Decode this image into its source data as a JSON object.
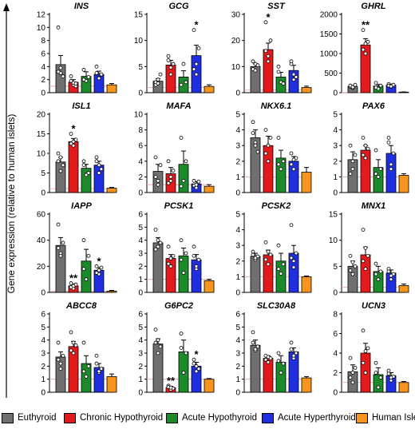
{
  "y_axis_label": "Gene expression (relative to human islets)",
  "groups": [
    {
      "name": "Euthyroid",
      "color": "#6f6f6f"
    },
    {
      "name": "Chronic Hypothyroid",
      "color": "#e31a1c"
    },
    {
      "name": "Acute Hypothyroid",
      "color": "#1a8a2a"
    },
    {
      "name": "Acute Hyperthyroid",
      "color": "#1f2fe0"
    },
    {
      "name": "Human Islets",
      "color": "#f7941d"
    }
  ],
  "chart_data": [
    {
      "type": "bar",
      "title": "INS",
      "ylim": [
        0,
        12
      ],
      "yticks": [
        0,
        2,
        4,
        6,
        8,
        10,
        12
      ],
      "categories": [
        "Euthyroid",
        "Chronic Hypothyroid",
        "Acute Hypothyroid",
        "Acute Hyperthyroid",
        "Human Islets"
      ],
      "values": [
        4.3,
        1.6,
        2.5,
        2.8,
        1.2
      ],
      "errors": [
        1.4,
        0.4,
        0.7,
        0.5,
        0.2
      ],
      "points": [
        [
          10,
          3,
          2.5,
          3.2,
          3.8
        ],
        [
          2.5,
          1.2,
          1.0,
          1.8,
          1.5,
          1.4
        ],
        [
          3.5,
          1.8,
          2.4,
          2.0
        ],
        [
          4,
          2.3,
          2.8,
          3.0,
          2.2
        ]
      ],
      "significance": [
        "",
        "",
        "",
        "",
        ""
      ]
    },
    {
      "type": "bar",
      "title": "GCG",
      "ylim": [
        0,
        15
      ],
      "yticks": [
        0,
        5,
        10,
        15
      ],
      "categories": [
        "Euthyroid",
        "Chronic Hypothyroid",
        "Acute Hypothyroid",
        "Acute Hyperthyroid",
        "Human Islets"
      ],
      "values": [
        2.2,
        5.3,
        3.0,
        7.1,
        1.2
      ],
      "errors": [
        0.5,
        0.9,
        1.2,
        2.0,
        0.3
      ],
      "points": [
        [
          1.5,
          2.5,
          3.5,
          2.0,
          1.8
        ],
        [
          7,
          3.5,
          5.5,
          6.2,
          4.8
        ],
        [
          1.5,
          5.5,
          2.0
        ],
        [
          12,
          3.5,
          8.5,
          4.5,
          5.5
        ]
      ],
      "significance": [
        "",
        "",
        "",
        "*",
        ""
      ]
    },
    {
      "type": "bar",
      "title": "SST",
      "ylim": [
        0,
        30
      ],
      "yticks": [
        0,
        10,
        20,
        30
      ],
      "categories": [
        "Euthyroid",
        "Chronic Hypothyroid",
        "Acute Hypothyroid",
        "Acute Hyperthyroid",
        "Human Islets"
      ],
      "values": [
        10,
        16.5,
        6,
        8.5,
        2
      ],
      "errors": [
        1.0,
        2.5,
        1.8,
        2.0,
        0.5
      ],
      "points": [
        [
          9,
          11,
          10.5,
          12,
          8.5
        ],
        [
          27,
          14,
          20,
          16,
          12
        ],
        [
          8,
          4,
          3.5,
          10
        ],
        [
          11,
          5,
          6,
          12,
          7
        ]
      ],
      "significance": [
        "",
        "*",
        "",
        "",
        ""
      ]
    },
    {
      "type": "bar",
      "title": "GHRL",
      "ylim": [
        0,
        2000
      ],
      "yticks": [
        0,
        500,
        1000,
        1500,
        2000
      ],
      "categories": [
        "Euthyroid",
        "Chronic Hypothyroid",
        "Acute Hypothyroid",
        "Acute Hyperthyroid",
        "Human Islets"
      ],
      "values": [
        160,
        1220,
        170,
        190,
        15
      ],
      "errors": [
        25,
        160,
        40,
        30,
        5
      ],
      "points": [
        [
          150,
          120,
          200,
          180,
          140
        ],
        [
          1600,
          1000,
          1300,
          1100,
          1250
        ],
        [
          250,
          100,
          180,
          130
        ],
        [
          220,
          150,
          200,
          180,
          160
        ]
      ],
      "significance": [
        "",
        "**",
        "",
        "",
        ""
      ]
    },
    {
      "type": "bar",
      "title": "ISL1",
      "ylim": [
        0,
        20
      ],
      "yticks": [
        0,
        5,
        10,
        15,
        20
      ],
      "categories": [
        "Euthyroid",
        "Chronic Hypothyroid",
        "Acute Hypothyroid",
        "Acute Hyperthyroid",
        "Human Islets"
      ],
      "values": [
        7.8,
        13,
        6.2,
        7,
        1.1
      ],
      "errors": [
        1.2,
        0.8,
        1.0,
        1.0,
        0.2
      ],
      "points": [
        [
          10,
          5.5,
          7,
          8,
          9
        ],
        [
          15,
          12,
          13.5,
          12.5,
          13
        ],
        [
          8,
          4.5,
          5,
          7
        ],
        [
          9,
          5,
          6,
          8,
          7
        ]
      ],
      "significance": [
        "",
        "*",
        "",
        "",
        ""
      ]
    },
    {
      "type": "bar",
      "title": "MAFA",
      "ylim": [
        0,
        10
      ],
      "yticks": [
        0,
        2,
        4,
        6,
        8,
        10
      ],
      "categories": [
        "Euthyroid",
        "Chronic Hypothyroid",
        "Acute Hypothyroid",
        "Acute Hyperthyroid",
        "Human Islets"
      ],
      "values": [
        2.7,
        2.4,
        3.6,
        1.1,
        0.8
      ],
      "errors": [
        0.9,
        0.8,
        1.7,
        0.3,
        0.2
      ],
      "points": [
        [
          4.5,
          1.5,
          3.5,
          2.0,
          1.0
        ],
        [
          4,
          1.5,
          2.8,
          1.2,
          2.0
        ],
        [
          7,
          1.5,
          4,
          0.8
        ],
        [
          1.5,
          0.6,
          1.4,
          0.9,
          1.0
        ]
      ],
      "significance": [
        "",
        "",
        "",
        "",
        ""
      ]
    },
    {
      "type": "bar",
      "title": "NKX6.1",
      "ylim": [
        0,
        5
      ],
      "yticks": [
        0,
        1,
        2,
        3,
        4,
        5
      ],
      "categories": [
        "Euthyroid",
        "Chronic Hypothyroid",
        "Acute Hypothyroid",
        "Acute Hyperthyroid",
        "Human Islets"
      ],
      "values": [
        3.5,
        3.0,
        2.2,
        2.0,
        1.3
      ],
      "errors": [
        0.5,
        0.6,
        0.5,
        0.3,
        0.3
      ],
      "points": [
        [
          4.5,
          3.2,
          2.6,
          3.8,
          3.0
        ],
        [
          4,
          2.0,
          3.5,
          2.5,
          3.0
        ],
        [
          3.5,
          1.5,
          2.0,
          1.8
        ],
        [
          2.5,
          1.5,
          2.2,
          1.8,
          2.1
        ]
      ],
      "significance": [
        "",
        "",
        "",
        "",
        ""
      ]
    },
    {
      "type": "bar",
      "title": "PAX6",
      "ylim": [
        0,
        5
      ],
      "yticks": [
        0,
        1,
        2,
        3,
        4,
        5
      ],
      "categories": [
        "Euthyroid",
        "Chronic Hypothyroid",
        "Acute Hypothyroid",
        "Acute Hyperthyroid",
        "Human Islets"
      ],
      "values": [
        2.1,
        2.7,
        1.6,
        2.5,
        1.1
      ],
      "errors": [
        0.5,
        0.3,
        0.5,
        0.5,
        0.1
      ],
      "points": [
        [
          3,
          1.5,
          2.4,
          1.2,
          2.0
        ],
        [
          3.5,
          2.2,
          2.8,
          2.4,
          3.0
        ],
        [
          2.7,
          1.0,
          1.5,
          1.2
        ],
        [
          3.5,
          1.5,
          2.5,
          3.2,
          1.8
        ]
      ],
      "significance": [
        "",
        "",
        "",
        "",
        ""
      ]
    },
    {
      "type": "bar",
      "title": "IAPP",
      "ylim": [
        0,
        60
      ],
      "yticks": [
        0,
        20,
        40,
        60
      ],
      "categories": [
        "Euthyroid",
        "Chronic Hypothyroid",
        "Acute Hypothyroid",
        "Acute Hyperthyroid",
        "Human Islets"
      ],
      "values": [
        36,
        5,
        24,
        17,
        1
      ],
      "errors": [
        6,
        1.5,
        9,
        2,
        0.5
      ],
      "points": [
        [
          52,
          30,
          38,
          34,
          28
        ],
        [
          7,
          3,
          6,
          4,
          5
        ],
        [
          40,
          10,
          28,
          18
        ],
        [
          20,
          14,
          19,
          15,
          17
        ]
      ],
      "significance": [
        "",
        "**",
        "",
        "*",
        ""
      ]
    },
    {
      "type": "bar",
      "title": "PCSK1",
      "ylim": [
        0,
        6
      ],
      "yticks": [
        0,
        1,
        2,
        3,
        4,
        5,
        6
      ],
      "categories": [
        "Euthyroid",
        "Chronic Hypothyroid",
        "Acute Hypothyroid",
        "Acute Hyperthyroid",
        "Human Islets"
      ],
      "values": [
        3.8,
        2.6,
        2.8,
        2.5,
        0.9
      ],
      "errors": [
        0.4,
        0.3,
        0.6,
        0.4,
        0.1
      ],
      "points": [
        [
          4.8,
          3.5,
          3.8,
          3.3,
          4.0
        ],
        [
          3.5,
          2.0,
          2.8,
          2.2,
          2.6
        ],
        [
          4,
          1.5,
          3.0,
          2.5
        ],
        [
          3.5,
          1.8,
          2.5,
          2.8,
          2.0
        ]
      ],
      "significance": [
        "",
        "",
        "",
        "",
        ""
      ]
    },
    {
      "type": "bar",
      "title": "PCSK2",
      "ylim": [
        0,
        5
      ],
      "yticks": [
        0,
        1,
        2,
        3,
        4,
        5
      ],
      "categories": [
        "Euthyroid",
        "Chronic Hypothyroid",
        "Acute Hypothyroid",
        "Acute Hyperthyroid",
        "Human Islets"
      ],
      "values": [
        2.3,
        2.4,
        2.0,
        2.5,
        1.0
      ],
      "errors": [
        0.2,
        0.3,
        0.5,
        0.5,
        0.05
      ],
      "points": [
        [
          2.6,
          2.1,
          2.3,
          2.4,
          2.2
        ],
        [
          3.2,
          1.8,
          2.4,
          2.1,
          2.6
        ],
        [
          3.0,
          1.2,
          1.8,
          1.5
        ],
        [
          4.3,
          1.6,
          2.5,
          2.2,
          2.0
        ]
      ],
      "significance": [
        "",
        "",
        "",
        "",
        ""
      ]
    },
    {
      "type": "bar",
      "title": "MNX1",
      "ylim": [
        0,
        15
      ],
      "yticks": [
        0,
        5,
        10,
        15
      ],
      "categories": [
        "Euthyroid",
        "Chronic Hypothyroid",
        "Acute Hypothyroid",
        "Acute Hyperthyroid",
        "Human Islets"
      ],
      "values": [
        5.0,
        7.2,
        4.0,
        3.7,
        1.3
      ],
      "errors": [
        1.0,
        1.5,
        1.0,
        0.6,
        0.3
      ],
      "points": [
        [
          7,
          3.5,
          5,
          4.2,
          5.8
        ],
        [
          12,
          4.5,
          7,
          6,
          8.5
        ],
        [
          5.5,
          2.5,
          4,
          3.5
        ],
        [
          4.5,
          2.5,
          3.5,
          4,
          3.2
        ]
      ],
      "significance": [
        "",
        "",
        "",
        "",
        ""
      ]
    },
    {
      "type": "bar",
      "title": "ABCC8",
      "ylim": [
        0,
        6
      ],
      "yticks": [
        0,
        1,
        2,
        3,
        4,
        5,
        6
      ],
      "categories": [
        "Euthyroid",
        "Chronic Hypothyroid",
        "Acute Hypothyroid",
        "Acute Hyperthyroid",
        "Human Islets"
      ],
      "values": [
        2.7,
        3.5,
        2.2,
        1.9,
        1.2
      ],
      "errors": [
        0.4,
        0.4,
        0.6,
        0.3,
        0.2
      ],
      "points": [
        [
          3.8,
          1.8,
          2.8,
          2.5,
          2.2
        ],
        [
          4.6,
          3.0,
          3.6,
          3.2,
          3.8
        ],
        [
          3.8,
          1.2,
          2.0,
          1.6
        ],
        [
          2.8,
          1.5,
          1.8,
          2.2,
          1.6
        ]
      ],
      "significance": [
        "",
        "",
        "",
        "",
        ""
      ]
    },
    {
      "type": "bar",
      "title": "G6PC2",
      "ylim": [
        0,
        6
      ],
      "yticks": [
        0,
        1,
        2,
        3,
        4,
        5,
        6
      ],
      "categories": [
        "Euthyroid",
        "Chronic Hypothyroid",
        "Acute Hypothyroid",
        "Acute Hyperthyroid",
        "Human Islets"
      ],
      "values": [
        3.7,
        0.35,
        3.1,
        2.0,
        1.0
      ],
      "errors": [
        0.4,
        0.1,
        0.9,
        0.3,
        0.05
      ],
      "points": [
        [
          4.8,
          3.0,
          3.5,
          3.8,
          4.0
        ],
        [
          0.5,
          0.2,
          0.3,
          0.4,
          0.35
        ],
        [
          4.5,
          1.5,
          3.0,
          3.4
        ],
        [
          2.5,
          1.6,
          1.8,
          2.2,
          2.0
        ]
      ],
      "significance": [
        "",
        "**",
        "",
        "*",
        ""
      ]
    },
    {
      "type": "bar",
      "title": "SLC30A8",
      "ylim": [
        0,
        6
      ],
      "yticks": [
        0,
        1,
        2,
        3,
        4,
        5,
        6
      ],
      "categories": [
        "Euthyroid",
        "Chronic Hypothyroid",
        "Acute Hypothyroid",
        "Acute Hyperthyroid",
        "Human Islets"
      ],
      "values": [
        3.6,
        2.6,
        2.3,
        3.1,
        1.1
      ],
      "errors": [
        0.4,
        0.2,
        0.5,
        0.3,
        0.1
      ],
      "points": [
        [
          4.6,
          3.2,
          3.5,
          3.8,
          3.3
        ],
        [
          2.8,
          2.3,
          2.6,
          2.5,
          2.7
        ],
        [
          3.0,
          1.5,
          2.2,
          2.4
        ],
        [
          3.8,
          2.6,
          3.0,
          3.3,
          2.8
        ]
      ],
      "significance": [
        "",
        "",
        "",
        "",
        ""
      ]
    },
    {
      "type": "bar",
      "title": "UCN3",
      "ylim": [
        0,
        8
      ],
      "yticks": [
        0,
        2,
        4,
        6,
        8
      ],
      "categories": [
        "Euthyroid",
        "Chronic Hypothyroid",
        "Acute Hypothyroid",
        "Acute Hyperthyroid",
        "Human Islets"
      ],
      "values": [
        2.1,
        4.0,
        1.8,
        1.7,
        1.0
      ],
      "errors": [
        0.7,
        1.0,
        0.7,
        0.3,
        0.1
      ],
      "points": [
        [
          3.5,
          1.0,
          2.5,
          1.5,
          2.0
        ],
        [
          6.3,
          2.0,
          4.5,
          3.0,
          4.2
        ],
        [
          3.0,
          0.5,
          1.5,
          2.0
        ],
        [
          2.2,
          1.2,
          1.6,
          1.9,
          1.5
        ]
      ],
      "significance": [
        "",
        "",
        "",
        "",
        ""
      ]
    }
  ]
}
